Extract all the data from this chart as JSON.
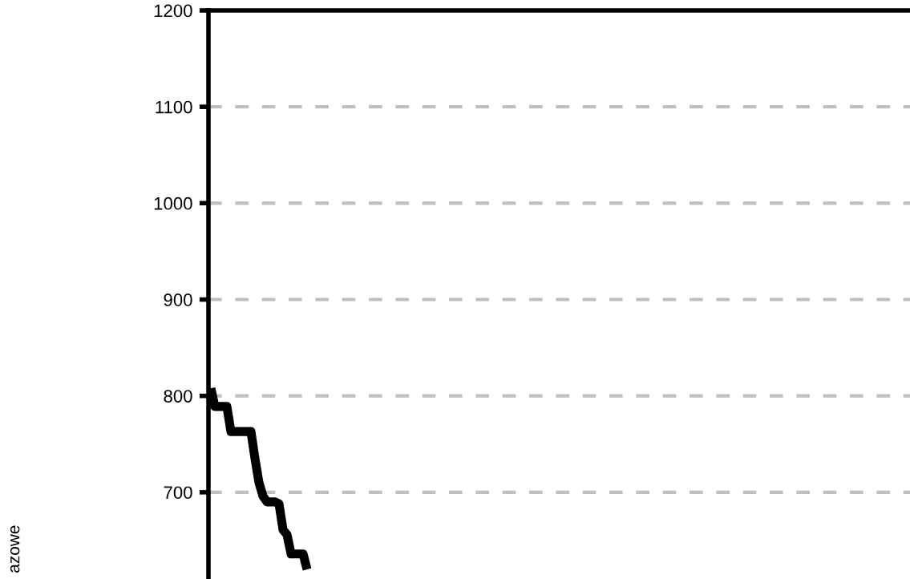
{
  "chart_data": {
    "type": "line",
    "annotations": [
      "azowe"
    ],
    "categories": [
      null,
      null,
      null,
      null,
      null,
      null,
      null,
      null,
      null,
      null,
      null,
      null,
      null,
      null,
      null,
      null,
      null,
      null,
      null,
      null,
      null,
      null,
      null,
      null,
      null,
      null,
      null,
      null,
      null,
      null,
      null,
      null,
      null,
      null,
      null,
      null,
      null,
      null,
      null,
      null,
      null,
      null,
      null,
      null,
      null,
      null,
      null,
      null,
      null,
      null,
      null,
      null,
      null,
      null,
      null,
      null,
      null,
      null,
      null,
      null,
      null,
      null,
      null,
      null,
      null,
      null,
      null,
      null,
      null,
      null,
      null,
      null,
      null,
      null,
      null,
      null,
      null,
      null,
      null,
      null,
      null,
      null,
      null,
      null,
      null,
      null,
      null,
      null,
      null,
      null,
      null,
      null,
      null,
      null,
      null,
      null,
      null,
      null,
      null,
      null,
      null,
      null,
      null,
      null,
      null,
      null,
      null,
      null,
      null,
      null,
      null,
      null,
      null,
      null,
      null,
      null,
      null,
      null,
      null,
      null,
      null,
      null,
      null,
      null,
      null,
      null,
      null,
      null,
      null,
      null,
      null,
      null,
      null,
      null,
      null,
      null,
      null,
      null,
      null,
      null,
      null,
      null,
      null,
      null,
      null,
      null,
      null,
      null,
      null,
      null,
      null,
      null,
      null,
      null,
      null,
      null,
      null,
      null,
      null,
      null,
      null,
      null,
      null,
      null,
      null,
      null,
      null,
      null,
      null,
      null,
      null,
      null,
      null,
      null,
      null
    ],
    "series": [
      {
        "color": "#000000",
        "values": [
          808,
          789,
          789,
          789,
          789,
          763,
          763,
          763,
          763,
          763,
          763,
          735,
          710,
          696,
          690,
          690,
          690,
          688,
          661,
          656,
          636,
          636,
          636,
          636,
          620,
          null,
          null,
          null,
          null,
          null,
          null,
          null,
          null,
          null,
          null,
          null,
          null,
          null,
          null,
          null,
          null,
          null,
          null,
          null,
          null,
          null,
          null,
          null,
          null,
          null,
          null,
          null,
          null,
          null,
          null,
          null,
          null,
          null,
          null,
          null,
          null,
          null,
          null,
          null,
          null,
          null,
          null,
          null,
          null,
          null,
          null,
          null,
          null,
          null,
          null,
          null,
          null,
          null,
          null,
          null,
          null,
          null,
          null,
          null,
          null,
          null,
          null,
          null,
          null,
          null,
          null,
          null,
          null,
          null,
          null,
          null,
          null,
          null,
          null,
          null,
          null,
          null,
          null,
          null,
          null,
          null,
          null,
          null,
          null,
          null,
          null,
          null,
          null,
          null,
          null,
          null,
          null,
          null,
          null,
          null,
          null,
          null,
          null,
          null,
          null,
          null,
          null,
          null,
          null,
          null,
          null,
          null,
          null,
          null,
          null,
          null,
          null,
          null,
          null,
          null,
          null,
          null,
          null,
          null,
          null,
          null,
          null,
          null,
          null,
          null,
          null,
          null,
          null,
          null,
          null,
          null,
          null,
          null,
          null,
          null,
          null,
          null,
          null,
          null,
          null,
          null,
          null,
          null,
          null,
          null,
          null,
          null,
          null,
          null,
          null
        ]
      }
    ],
    "ylim": [
      610,
      1200
    ],
    "yticks": [
      700,
      800,
      900,
      1000,
      1100,
      1200
    ],
    "grid": "y",
    "tick_labels": "y",
    "line_style": "solid",
    "marker": "none"
  }
}
